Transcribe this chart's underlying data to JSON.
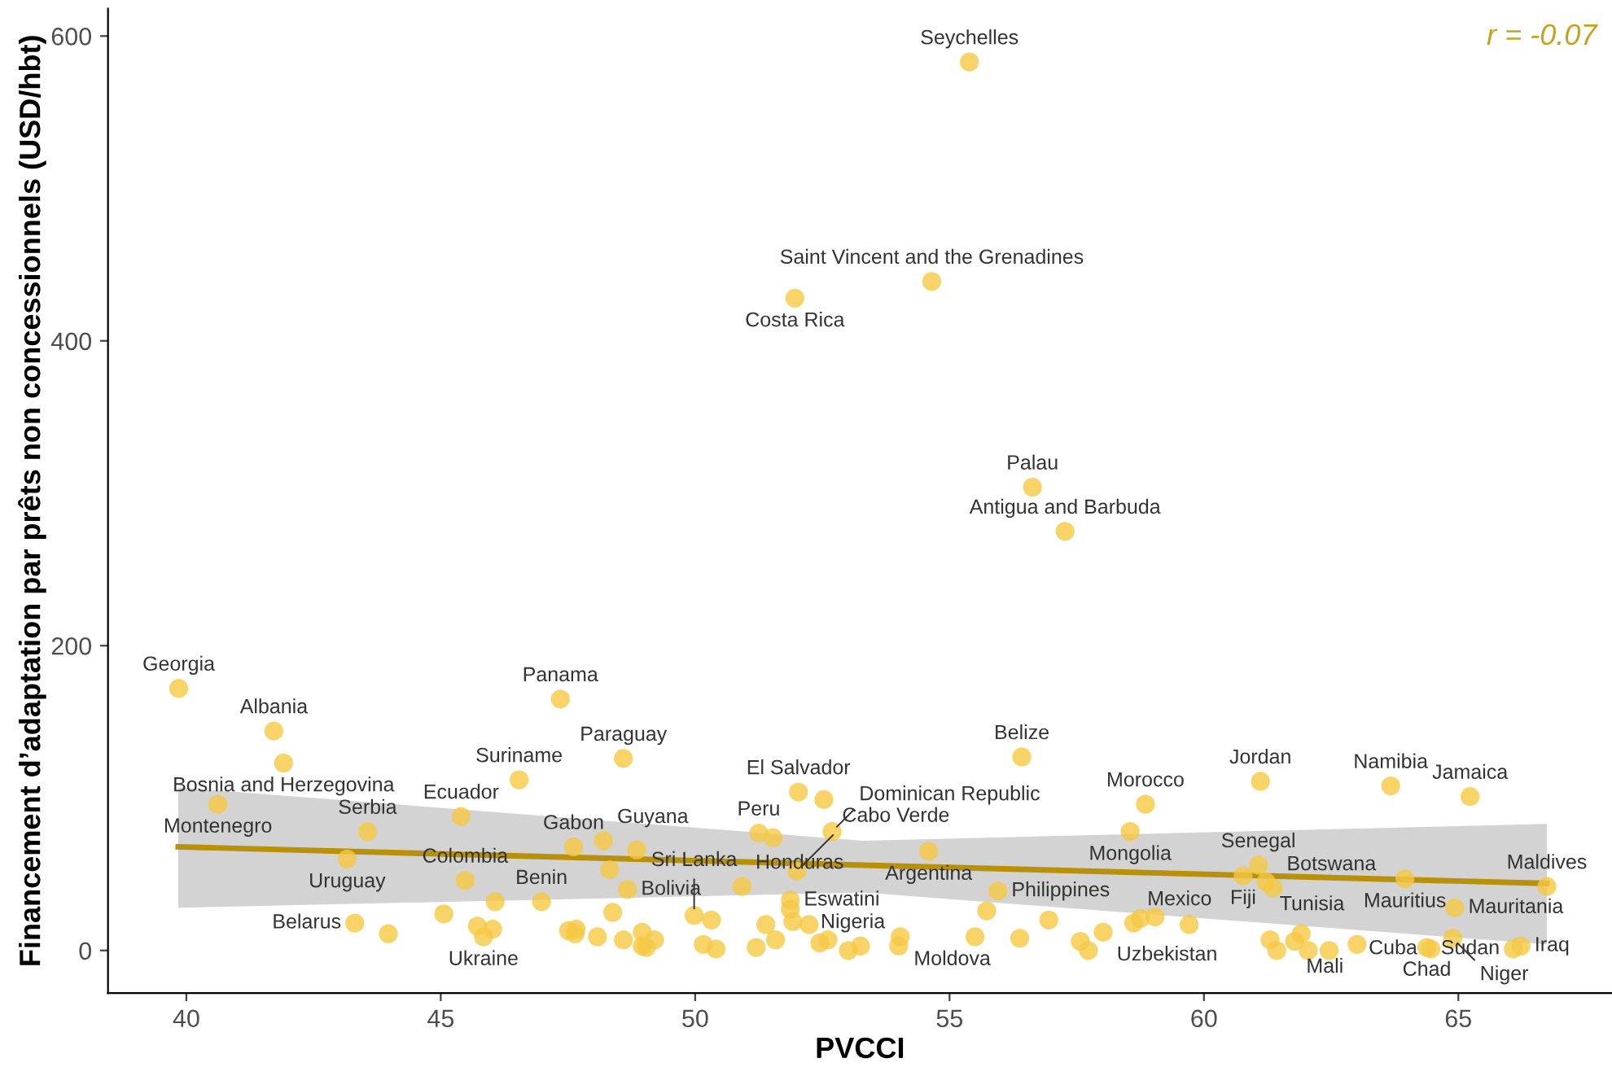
{
  "chart_data": {
    "type": "scatter",
    "xlabel": "PVCCI",
    "ylabel": "Financement d’adaptation par prêts non concessionnels (USD/hbt)",
    "xlim": [
      38.46,
      68.02
    ],
    "ylim": [
      -28,
      618
    ],
    "xticks": [
      40,
      45,
      50,
      55,
      60,
      65
    ],
    "yticks": [
      0,
      200,
      400,
      600
    ],
    "grid": false,
    "legend": false,
    "series": [
      {
        "marker": "circle",
        "color": "#f5c842",
        "x": [
          55.39,
          54.65,
          51.96,
          56.63,
          57.27,
          39.85,
          41.72,
          41.91,
          40.62,
          43.56,
          43.16,
          43.31,
          43.97,
          45.06,
          45.72,
          45.84,
          46.02,
          45.48,
          45.4,
          46.54,
          47.35,
          46.07,
          46.98,
          47.61,
          48.32,
          48.2,
          48.38,
          47.51,
          47.66,
          47.64,
          48.08,
          48.59,
          48.85,
          48.67,
          48.59,
          48.96,
          49.04,
          49.2,
          48.96,
          49.98,
          50.32,
          50.16,
          50.41,
          50.92,
          51.25,
          51.53,
          51.2,
          51.39,
          51.58,
          51.87,
          51.87,
          51.92,
          52.24,
          52.0,
          52.03,
          52.53,
          52.69,
          52.45,
          52.61,
          53.01,
          53.25,
          54.03,
          54.0,
          54.59,
          56.42,
          55.95,
          55.73,
          55.5,
          56.38,
          56.95,
          57.57,
          57.73,
          58.02,
          58.55,
          58.85,
          58.62,
          58.75,
          59.04,
          59.71,
          61.11,
          63.67,
          65.23,
          61.07,
          60.77,
          61.22,
          61.36,
          63.95,
          64.93,
          66.74,
          64.38,
          64.46,
          64.89,
          66.08,
          66.23,
          61.3,
          61.43,
          61.78,
          61.91,
          62.05,
          62.46,
          63.01
        ],
        "values": [
          583,
          439,
          428,
          304,
          275,
          172,
          144,
          123,
          96,
          78,
          60,
          18,
          11,
          24,
          16,
          9,
          14,
          46,
          88,
          112,
          165,
          32,
          32,
          68,
          53,
          72,
          25,
          13,
          14,
          11,
          9,
          126,
          66,
          40,
          7,
          12,
          2,
          7,
          3,
          23,
          20,
          4,
          1,
          42,
          77,
          74,
          2,
          17,
          7,
          33,
          27,
          19,
          17,
          52,
          104,
          99,
          78,
          5,
          7,
          0,
          3,
          9,
          3,
          65,
          127,
          39,
          26,
          9,
          8,
          20,
          6,
          0,
          12,
          78,
          96,
          18,
          21,
          22,
          17,
          111,
          108,
          101,
          56,
          49,
          45,
          41,
          47,
          28,
          42,
          2,
          1,
          8,
          1,
          3,
          7,
          0,
          6,
          11,
          0,
          0,
          4
        ]
      },
      {
        "type": "line",
        "color": "#b8900a",
        "x": [
          39.84,
          53.3,
          66.74
        ],
        "values": [
          68,
          56,
          44
        ],
        "lower": [
          28,
          38,
          4
        ],
        "upper": [
          107,
          72,
          83
        ]
      }
    ],
    "annotations": [
      "r = -0.07",
      {
        "text": "Seychelles",
        "x": 55.39,
        "y": 583
      },
      {
        "text": "Saint Vincent and the Grenadines",
        "x": 54.65,
        "y": 439
      },
      {
        "text": "Costa Rica",
        "x": 51.96,
        "y": 428
      },
      {
        "text": "Palau",
        "x": 56.63,
        "y": 304
      },
      {
        "text": "Antigua and Barbuda",
        "x": 57.27,
        "y": 275
      },
      {
        "text": "Georgia",
        "x": 39.85,
        "y": 172
      },
      {
        "text": "Albania",
        "x": 41.72,
        "y": 144
      },
      {
        "text": "Bosnia and Herzegovina",
        "x": 41.91,
        "y": 123
      },
      {
        "text": "Montenegro",
        "x": 40.62,
        "y": 96
      },
      {
        "text": "Serbia",
        "x": 43.56,
        "y": 78
      },
      {
        "text": "Uruguay",
        "x": 43.16,
        "y": 60
      },
      {
        "text": "Belarus",
        "x": 43.31,
        "y": 18
      },
      {
        "text": "Ukraine",
        "x": 45.84,
        "y": 9
      },
      {
        "text": "Colombia",
        "x": 45.48,
        "y": 46
      },
      {
        "text": "Ecuador",
        "x": 45.4,
        "y": 88
      },
      {
        "text": "Suriname",
        "x": 46.54,
        "y": 112
      },
      {
        "text": "Panama",
        "x": 47.35,
        "y": 165
      },
      {
        "text": "Gabon",
        "x": 47.61,
        "y": 68
      },
      {
        "text": "Benin",
        "x": 46.98,
        "y": 32
      },
      {
        "text": "Guyana",
        "x": 48.2,
        "y": 72
      },
      {
        "text": "Bolivia",
        "x": 48.67,
        "y": 40
      },
      {
        "text": "Paraguay",
        "x": 48.59,
        "y": 126
      },
      {
        "text": "Sri Lanka",
        "x": 49.98,
        "y": 23
      },
      {
        "text": "Honduras",
        "x": 50.92,
        "y": 42
      },
      {
        "text": "Peru",
        "x": 51.25,
        "y": 77
      },
      {
        "text": "Eswatini",
        "x": 51.87,
        "y": 33
      },
      {
        "text": "Cabo Verde",
        "x": 52.0,
        "y": 52
      },
      {
        "text": "El Salvador",
        "x": 52.03,
        "y": 104
      },
      {
        "text": "Dominican Republic",
        "x": 52.69,
        "y": 78
      },
      {
        "text": "Moldova",
        "x": 54.03,
        "y": 9
      },
      {
        "text": "Nigeria",
        "x": 54.0,
        "y": 3
      },
      {
        "text": "Argentina",
        "x": 54.59,
        "y": 65
      },
      {
        "text": "Belize",
        "x": 56.42,
        "y": 127
      },
      {
        "text": "Philippines",
        "x": 55.95,
        "y": 39
      },
      {
        "text": "Uzbekistan",
        "x": 58.02,
        "y": 12
      },
      {
        "text": "Mexico",
        "x": 58.62,
        "y": 18
      },
      {
        "text": "Morocco",
        "x": 58.85,
        "y": 96
      },
      {
        "text": "Mongolia",
        "x": 58.55,
        "y": 78
      },
      {
        "text": "Jordan",
        "x": 61.11,
        "y": 111
      },
      {
        "text": "Namibia",
        "x": 63.67,
        "y": 108
      },
      {
        "text": "Jamaica",
        "x": 65.23,
        "y": 101
      },
      {
        "text": "Senegal",
        "x": 61.07,
        "y": 56
      },
      {
        "text": "Fiji",
        "x": 60.77,
        "y": 49
      },
      {
        "text": "Tunisia",
        "x": 61.22,
        "y": 45
      },
      {
        "text": "Botswana",
        "x": 61.36,
        "y": 41
      },
      {
        "text": "Mauritius",
        "x": 63.95,
        "y": 47
      },
      {
        "text": "Mauritania",
        "x": 64.93,
        "y": 28
      },
      {
        "text": "Maldives",
        "x": 66.74,
        "y": 42
      },
      {
        "text": "Chad",
        "x": 64.38,
        "y": 2
      },
      {
        "text": "Cuba",
        "x": 64.46,
        "y": 1
      },
      {
        "text": "Niger",
        "x": 64.89,
        "y": 8
      },
      {
        "text": "Mali",
        "x": 63.01,
        "y": 4
      },
      {
        "text": "Iraq",
        "x": 66.23,
        "y": 3
      },
      {
        "text": "Sudan",
        "x": 66.08,
        "y": 1
      }
    ]
  }
}
